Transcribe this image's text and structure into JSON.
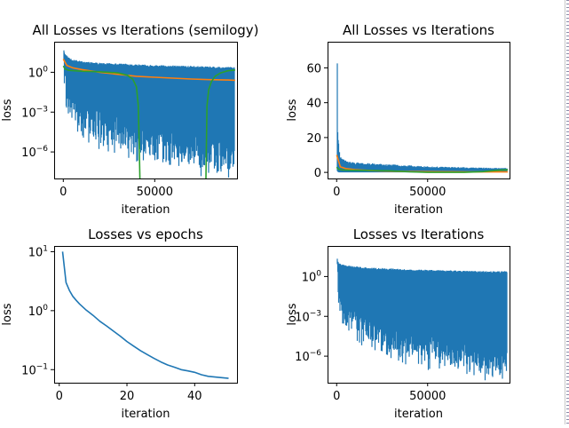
{
  "colors": {
    "c0": "#1f77b4",
    "c1": "#ff7f0e",
    "c2": "#2ca02c"
  },
  "chart_data": [
    {
      "type": "line",
      "title": "All Losses vs Iterations (semilogy)",
      "xlabel": "iteration",
      "ylabel": "loss",
      "yscale": "log",
      "xlim": [
        -5000,
        95000
      ],
      "ylim": [
        1e-08,
        200
      ],
      "xticks": [
        0,
        50000
      ],
      "xtick_labels": [
        "0",
        "50000"
      ],
      "yticks": [
        1,
        0.001,
        1e-06
      ],
      "ytick_labels": [
        "10^0",
        "10^-3",
        "10^-6"
      ],
      "grid": false,
      "series": [
        {
          "kind": "band",
          "color": "#1f77b4",
          "x": [
            0,
            800,
            2000,
            5000,
            10000,
            15000,
            20000,
            30000,
            40000,
            50000,
            60000,
            70000,
            80000,
            90000,
            94000
          ],
          "upper": [
            60,
            25,
            15,
            8,
            6,
            5,
            4.5,
            4,
            3.5,
            3,
            2.8,
            2.6,
            2.4,
            2.2,
            2.2
          ],
          "lower": [
            1,
            0.5,
            0.005,
            0.001,
            0.0003,
            0.0001,
            4e-05,
            1e-05,
            4e-06,
            2e-06,
            1e-06,
            5e-07,
            3e-07,
            2e-07,
            1.5e-07
          ]
        },
        {
          "kind": "line",
          "color": "#ff7f0e",
          "x": [
            0,
            2000,
            5000,
            10000,
            20000,
            30000,
            40000,
            50000,
            60000,
            70000,
            80000,
            90000,
            94000
          ],
          "y": [
            10,
            3.2,
            2.2,
            1.6,
            1.0,
            0.7,
            0.5,
            0.42,
            0.36,
            0.31,
            0.28,
            0.26,
            0.25
          ]
        },
        {
          "kind": "line",
          "color": "#2ca02c",
          "x": [
            0,
            1000,
            3000,
            10000,
            20000,
            30000,
            35000,
            38000,
            40000,
            41000,
            41600,
            41900
          ],
          "y": [
            3,
            1.8,
            1.4,
            1.2,
            1.1,
            0.9,
            0.6,
            0.3,
            0.08,
            0.003,
            1e-06,
            1e-08
          ]
        },
        {
          "kind": "line",
          "color": "#2ca02c",
          "x": [
            78000,
            78200,
            78600,
            79500,
            81000,
            83000,
            86000,
            90000,
            94000
          ],
          "y": [
            1e-08,
            1e-06,
            0.003,
            0.05,
            0.2,
            0.5,
            0.9,
            1.3,
            1.5
          ]
        }
      ]
    },
    {
      "type": "line",
      "title": "All Losses vs Iterations",
      "xlabel": "iteration",
      "ylabel": "loss",
      "yscale": "linear",
      "xlim": [
        -5000,
        95000
      ],
      "ylim": [
        -3.5,
        75
      ],
      "xticks": [
        0,
        50000
      ],
      "xtick_labels": [
        "0",
        "50000"
      ],
      "yticks": [
        0,
        20,
        40,
        60
      ],
      "ytick_labels": [
        "0",
        "20",
        "40",
        "60"
      ],
      "grid": false,
      "series": [
        {
          "kind": "band",
          "color": "#1f77b4",
          "x": [
            0,
            300,
            500,
            800,
            1200,
            2000,
            3000,
            5000,
            10000,
            20000,
            30000,
            40000,
            50000,
            60000,
            70000,
            80000,
            90000,
            94000
          ],
          "upper": [
            28,
            72,
            30,
            22,
            12,
            9,
            7,
            6,
            5,
            4.5,
            4,
            3.5,
            3,
            2.8,
            2.6,
            2.4,
            2.2,
            2.2
          ],
          "lower": [
            1,
            1,
            0.5,
            0.3,
            0.05,
            0,
            0,
            0,
            0,
            0,
            0,
            0,
            0,
            0,
            0,
            0,
            0,
            0
          ]
        },
        {
          "kind": "line",
          "color": "#ff7f0e",
          "x": [
            0,
            2000,
            5000,
            10000,
            20000,
            30000,
            40000,
            50000,
            60000,
            70000,
            80000,
            90000,
            94000
          ],
          "y": [
            10,
            3.2,
            2.2,
            1.6,
            1.0,
            0.7,
            0.5,
            0.42,
            0.36,
            0.31,
            0.28,
            0.26,
            0.25
          ]
        },
        {
          "kind": "line",
          "color": "#2ca02c",
          "x": [
            0,
            1000,
            3000,
            10000,
            20000,
            30000,
            40000,
            50000,
            60000,
            70000,
            80000,
            90000,
            94000
          ],
          "y": [
            3,
            1.8,
            1.4,
            1.2,
            1.1,
            0.9,
            0.3,
            0,
            0,
            0,
            0.4,
            1.3,
            1.5
          ]
        }
      ]
    },
    {
      "type": "line",
      "title": "Losses vs epochs",
      "xlabel": "iteration",
      "ylabel": "loss",
      "yscale": "log",
      "xlim": [
        -1.5,
        52.5
      ],
      "ylim": [
        0.06,
        12.5
      ],
      "xticks": [
        0,
        20,
        40
      ],
      "xtick_labels": [
        "0",
        "20",
        "40"
      ],
      "yticks": [
        10,
        1,
        0.1
      ],
      "ytick_labels": [
        "10^1",
        "10^0",
        "10^-1"
      ],
      "grid": false,
      "series": [
        {
          "kind": "line",
          "color": "#1f77b4",
          "x": [
            1,
            2,
            3,
            4,
            5,
            6,
            7,
            8,
            9,
            10,
            12,
            14,
            16,
            18,
            20,
            22,
            24,
            26,
            28,
            30,
            32,
            34,
            36,
            38,
            40,
            42,
            44,
            46,
            48,
            50
          ],
          "y": [
            10,
            3.0,
            2.2,
            1.75,
            1.5,
            1.3,
            1.15,
            1.02,
            0.92,
            0.83,
            0.66,
            0.55,
            0.45,
            0.37,
            0.3,
            0.25,
            0.21,
            0.18,
            0.155,
            0.135,
            0.12,
            0.11,
            0.1,
            0.095,
            0.09,
            0.082,
            0.077,
            0.075,
            0.073,
            0.071
          ]
        }
      ]
    },
    {
      "type": "line",
      "title": "Losses vs Iterations",
      "xlabel": "iteration",
      "ylabel": "loss",
      "yscale": "log",
      "xlim": [
        -5000,
        95000
      ],
      "ylim": [
        1e-08,
        200
      ],
      "xticks": [
        0,
        50000
      ],
      "xtick_labels": [
        "0",
        "50000"
      ],
      "yticks": [
        1,
        0.001,
        1e-06
      ],
      "ytick_labels": [
        "10^0",
        "10^-3",
        "10^-6"
      ],
      "grid": false,
      "series": [
        {
          "kind": "band",
          "color": "#1f77b4",
          "x": [
            0,
            800,
            2000,
            5000,
            10000,
            15000,
            20000,
            30000,
            40000,
            50000,
            60000,
            70000,
            80000,
            90000,
            94000
          ],
          "upper": [
            30,
            12,
            8,
            6,
            5,
            4.5,
            4,
            3.5,
            3,
            2.8,
            2.6,
            2.4,
            2.2,
            2.2,
            2.2
          ],
          "lower": [
            1,
            0.3,
            0.005,
            0.001,
            0.0003,
            0.0001,
            4e-05,
            1e-05,
            4e-06,
            2e-06,
            1e-06,
            5e-07,
            3e-07,
            2e-07,
            1.5e-07
          ]
        }
      ]
    }
  ]
}
